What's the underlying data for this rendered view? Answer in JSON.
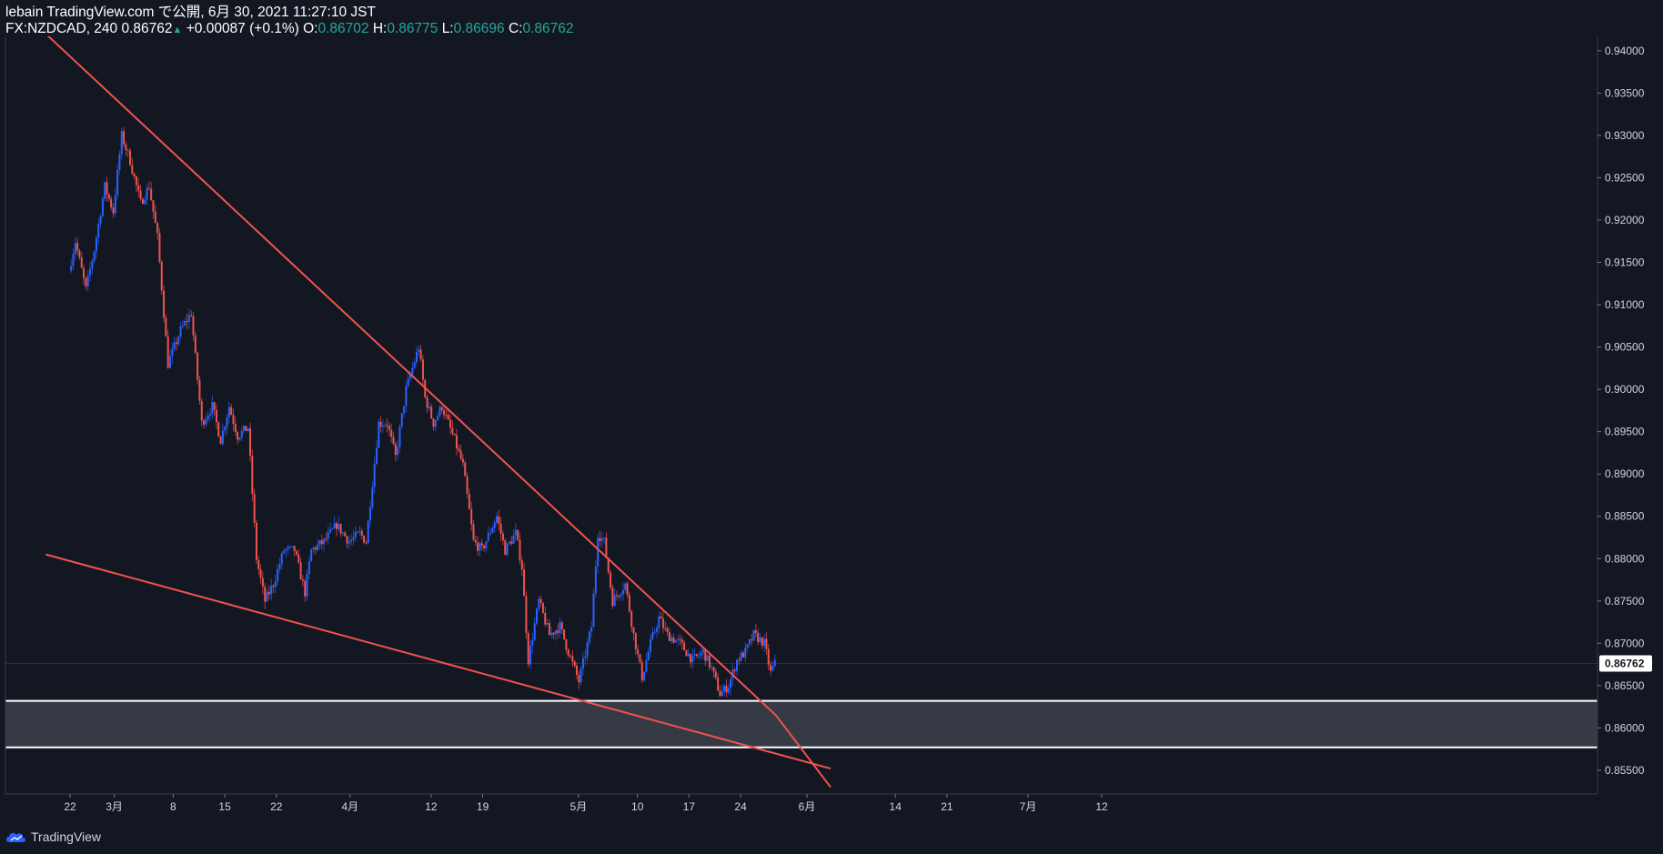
{
  "header": {
    "line1": "lebain TradingView.com で公開, 6月 30, 2021 11:27:10 JST",
    "symbol": "FX:NZDCAD, 240",
    "last": "0.86762",
    "change": "+0.00087 (+0.1%)",
    "o_label": "O:",
    "o_value": "0.86702",
    "h_label": "H:",
    "h_value": "0.86775",
    "l_label": "L:",
    "l_value": "0.86696",
    "c_label": "C:",
    "c_value": "0.86762"
  },
  "footer": {
    "brand": "TradingView"
  },
  "colors": {
    "background": "#131722",
    "up": "#2962ff",
    "down": "#ef5350",
    "trendline": "#ef5350",
    "zone": "#363a45",
    "zone_border": "#ffffff"
  },
  "chart_data": {
    "type": "candlestick",
    "symbol": "FX:NZDCAD",
    "interval": "240",
    "y_ticks": [
      "0.94000",
      "0.93500",
      "0.93000",
      "0.92500",
      "0.92000",
      "0.91500",
      "0.91000",
      "0.90500",
      "0.90000",
      "0.89500",
      "0.89000",
      "0.88500",
      "0.88000",
      "0.87500",
      "0.87000",
      "0.86500",
      "0.86000",
      "0.85500"
    ],
    "x_ticks": [
      "22",
      "3月",
      "8",
      "15",
      "22",
      "4月",
      "12",
      "19",
      "5月",
      "10",
      "17",
      "24",
      "6月",
      "14",
      "21",
      "7月",
      "12"
    ],
    "last_price_label": "0.86762",
    "price_path": [
      [
        0,
        0.914
      ],
      [
        0.6,
        0.9175
      ],
      [
        1.6,
        0.9118
      ],
      [
        2.4,
        0.9165
      ],
      [
        3.4,
        0.924
      ],
      [
        4.2,
        0.921
      ],
      [
        5.0,
        0.93
      ],
      [
        5.8,
        0.927
      ],
      [
        6.8,
        0.922
      ],
      [
        7.6,
        0.924
      ],
      [
        8.4,
        0.918
      ],
      [
        9.4,
        0.903
      ],
      [
        10.6,
        0.907
      ],
      [
        11.6,
        0.909
      ],
      [
        12.6,
        0.896
      ],
      [
        13.6,
        0.898
      ],
      [
        14.4,
        0.894
      ],
      [
        15.2,
        0.898
      ],
      [
        16.0,
        0.8945
      ],
      [
        17.0,
        0.8955
      ],
      [
        17.8,
        0.88
      ],
      [
        18.6,
        0.875
      ],
      [
        19.4,
        0.877
      ],
      [
        20.4,
        0.881
      ],
      [
        21.4,
        0.881
      ],
      [
        22.4,
        0.876
      ],
      [
        23.0,
        0.881
      ],
      [
        24.2,
        0.882
      ],
      [
        25.4,
        0.884
      ],
      [
        26.6,
        0.882
      ],
      [
        27.6,
        0.883
      ],
      [
        28.2,
        0.882
      ],
      [
        29.4,
        0.896
      ],
      [
        30.2,
        0.896
      ],
      [
        31.0,
        0.892
      ],
      [
        32.0,
        0.9
      ],
      [
        33.2,
        0.905
      ],
      [
        33.8,
        0.899
      ],
      [
        34.6,
        0.896
      ],
      [
        35.4,
        0.898
      ],
      [
        36.6,
        0.894
      ],
      [
        37.4,
        0.891
      ],
      [
        38.4,
        0.882
      ],
      [
        39.2,
        0.881
      ],
      [
        40.6,
        0.885
      ],
      [
        41.4,
        0.881
      ],
      [
        42.4,
        0.883
      ],
      [
        43.0,
        0.879
      ],
      [
        43.6,
        0.868
      ],
      [
        44.6,
        0.875
      ],
      [
        45.6,
        0.871
      ],
      [
        46.6,
        0.872
      ],
      [
        47.4,
        0.869
      ],
      [
        48.4,
        0.8655
      ],
      [
        49.6,
        0.872
      ],
      [
        50.2,
        0.883
      ],
      [
        50.8,
        0.882
      ],
      [
        51.6,
        0.875
      ],
      [
        52.8,
        0.877
      ],
      [
        53.6,
        0.871
      ],
      [
        54.4,
        0.866
      ],
      [
        55.2,
        0.87
      ],
      [
        56.0,
        0.873
      ],
      [
        56.8,
        0.871
      ],
      [
        58.0,
        0.87
      ],
      [
        59.2,
        0.868
      ],
      [
        60.2,
        0.869
      ],
      [
        61.0,
        0.867
      ],
      [
        61.8,
        0.864
      ],
      [
        62.6,
        0.865
      ],
      [
        63.4,
        0.868
      ],
      [
        64.2,
        0.869
      ],
      [
        65.0,
        0.871
      ],
      [
        66.0,
        0.87
      ],
      [
        66.6,
        0.8665
      ],
      [
        67.0,
        0.8676
      ]
    ],
    "trendlines": [
      {
        "name": "upper",
        "points": [
          [
            -2.3,
            0.942
          ],
          [
            67.0,
            0.8615
          ],
          [
            72.2,
            0.853
          ]
        ]
      },
      {
        "name": "lower",
        "points": [
          [
            -2.3,
            0.8805
          ],
          [
            72.2,
            0.8552
          ]
        ]
      }
    ],
    "zone": {
      "top": 0.8632,
      "bottom": 0.8577
    },
    "ylim": [
      0.8522,
      0.9417
    ]
  }
}
